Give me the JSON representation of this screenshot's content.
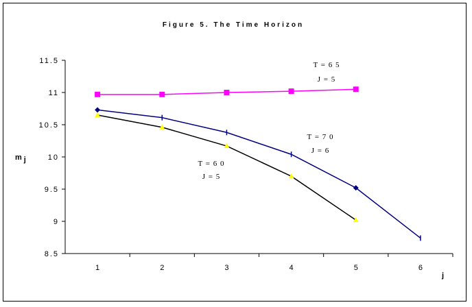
{
  "chart_data": {
    "type": "line",
    "title": "Figure 5. The Time Horizon",
    "xlabel": "j",
    "ylabel_main": "m",
    "ylabel_sub": "j",
    "x_ticks": [
      "1",
      "2",
      "3",
      "4",
      "5",
      "6"
    ],
    "y_ticks": [
      "8.5",
      "9",
      "9.5",
      "10",
      "10.5",
      "11",
      "11.5"
    ],
    "xlim": [
      0.5,
      6.5
    ],
    "ylim": [
      8.5,
      11.5
    ],
    "grid": false,
    "series": [
      {
        "name": "T=65",
        "color": "#ff00ff",
        "marker": "square",
        "x": [
          1,
          2,
          3,
          4,
          5
        ],
        "y": [
          10.97,
          10.97,
          11.0,
          11.02,
          11.05
        ],
        "label_lines": [
          "T = 6 5",
          "J = 5"
        ]
      },
      {
        "name": "T=70",
        "color": "#000080",
        "marker": "diamond",
        "x": [
          1,
          2,
          3,
          4,
          5,
          6
        ],
        "y": [
          10.73,
          10.61,
          10.38,
          10.04,
          9.52,
          8.74
        ],
        "label_lines": [
          "T = 7 0",
          "J = 6"
        ]
      },
      {
        "name": "T=60",
        "color": "#000000",
        "marker_color": "#ffff00",
        "marker": "triangle",
        "x": [
          1,
          2,
          3,
          4,
          5
        ],
        "y": [
          10.65,
          10.46,
          10.17,
          9.7,
          9.02
        ],
        "label_lines": [
          "T = 6 0",
          "J = 5"
        ]
      }
    ]
  }
}
